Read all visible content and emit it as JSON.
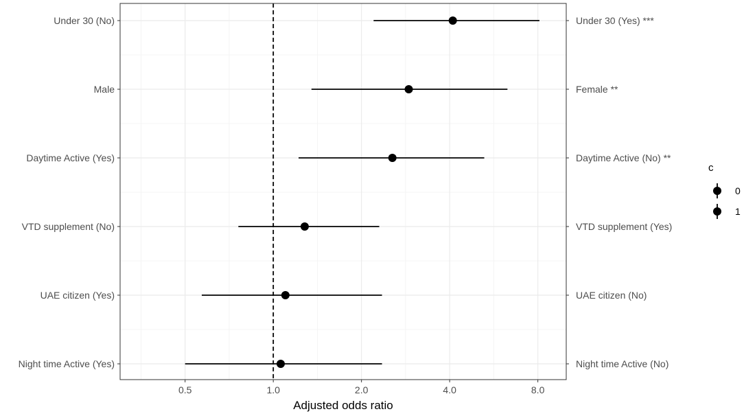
{
  "chart_data": {
    "type": "forest",
    "xlabel": "Adjusted odds ratio",
    "x_scale": "log2",
    "xlim": [
      0.3,
      10.0
    ],
    "x_ticks": [
      0.5,
      1.0,
      2.0,
      4.0,
      8.0
    ],
    "x_tick_labels": [
      "0.5",
      "1.0",
      "2.0",
      "4.0",
      "8.0"
    ],
    "reference_line": 1.0,
    "grid": true,
    "legend_position": "right",
    "legend": {
      "title": "c",
      "items": [
        "0",
        "1"
      ]
    },
    "rows": [
      {
        "left_label": "Under 30 (No)",
        "right_label": "Under 30 (Yes) ***",
        "or": 4.1,
        "lower": 2.2,
        "upper": 8.1
      },
      {
        "left_label": "Male",
        "right_label": "Female **",
        "or": 2.9,
        "lower": 1.35,
        "upper": 6.3
      },
      {
        "left_label": "Daytime Active (Yes)",
        "right_label": "Daytime Active (No) **",
        "or": 2.55,
        "lower": 1.22,
        "upper": 5.25
      },
      {
        "left_label": "VTD supplement (No)",
        "right_label": "VTD supplement (Yes)",
        "or": 1.28,
        "lower": 0.76,
        "upper": 2.3
      },
      {
        "left_label": "UAE citizen (Yes)",
        "right_label": "UAE citizen (No)",
        "or": 1.1,
        "lower": 0.57,
        "upper": 2.35
      },
      {
        "left_label": "Night time Active (Yes)",
        "right_label": "Night time Active (No)",
        "or": 1.06,
        "lower": 0.5,
        "upper": 2.35
      }
    ]
  }
}
